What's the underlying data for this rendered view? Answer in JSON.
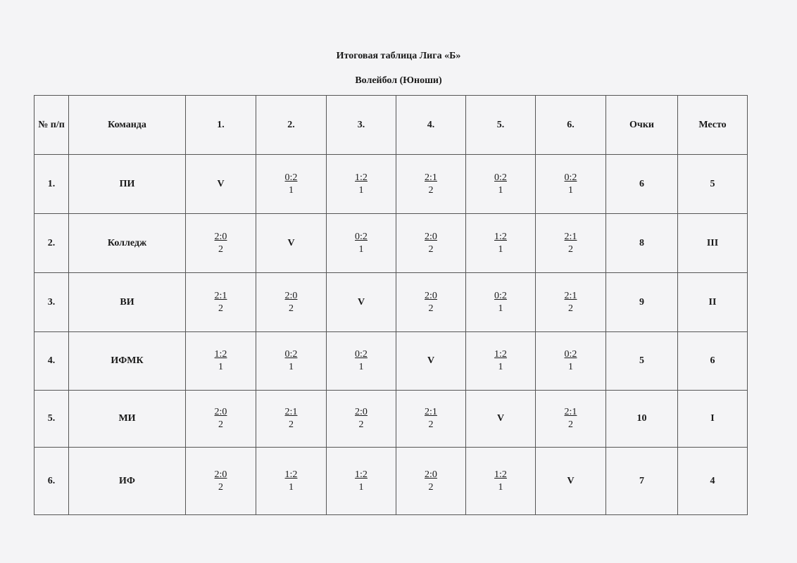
{
  "title": "Итоговая таблица Лига «Б»",
  "subtitle": "Волейбол (Юноши)",
  "table": {
    "headers": [
      "№ п/п",
      "Команда",
      "1.",
      "2.",
      "3.",
      "4.",
      "5.",
      "6.",
      "Очки",
      "Место"
    ],
    "rows": [
      {
        "num": "1.",
        "team": "ПИ",
        "results": [
          "V",
          [
            "0:2",
            "1"
          ],
          [
            "1:2",
            "1"
          ],
          [
            "2:1",
            "2"
          ],
          [
            "0:2",
            "1"
          ],
          [
            "0:2",
            "1"
          ]
        ],
        "points": "6",
        "place": "5"
      },
      {
        "num": "2.",
        "team": "Колледж",
        "results": [
          [
            "2:0",
            "2"
          ],
          "V",
          [
            "0:2",
            "1"
          ],
          [
            "2:0",
            "2"
          ],
          [
            "1:2",
            "1"
          ],
          [
            "2:1",
            "2"
          ]
        ],
        "points": "8",
        "place": "III"
      },
      {
        "num": "3.",
        "team": "ВИ",
        "results": [
          [
            "2:1",
            "2"
          ],
          [
            "2:0",
            "2"
          ],
          "V",
          [
            "2:0",
            "2"
          ],
          [
            "0:2",
            "1"
          ],
          [
            "2:1",
            "2"
          ]
        ],
        "points": "9",
        "place": "II"
      },
      {
        "num": "4.",
        "team": "ИФМК",
        "results": [
          [
            "1:2",
            "1"
          ],
          [
            "0:2",
            "1"
          ],
          [
            "0:2",
            "1"
          ],
          "V",
          [
            "1:2",
            "1"
          ],
          [
            "0:2",
            "1"
          ]
        ],
        "points": "5",
        "place": "6"
      },
      {
        "num": "5.",
        "team": "МИ",
        "results": [
          [
            "2:0",
            "2"
          ],
          [
            "2:1",
            "2"
          ],
          [
            "2:0",
            "2"
          ],
          [
            "2:1",
            "2"
          ],
          "V",
          [
            "2:1",
            "2"
          ]
        ],
        "points": "10",
        "place": "I"
      },
      {
        "num": "6.",
        "team": "ИФ",
        "results": [
          [
            "2:0",
            "2"
          ],
          [
            "1:2",
            "1"
          ],
          [
            "1:2",
            "1"
          ],
          [
            "2:0",
            "2"
          ],
          [
            "1:2",
            "1"
          ],
          "V"
        ],
        "points": "7",
        "place": "4"
      }
    ]
  }
}
